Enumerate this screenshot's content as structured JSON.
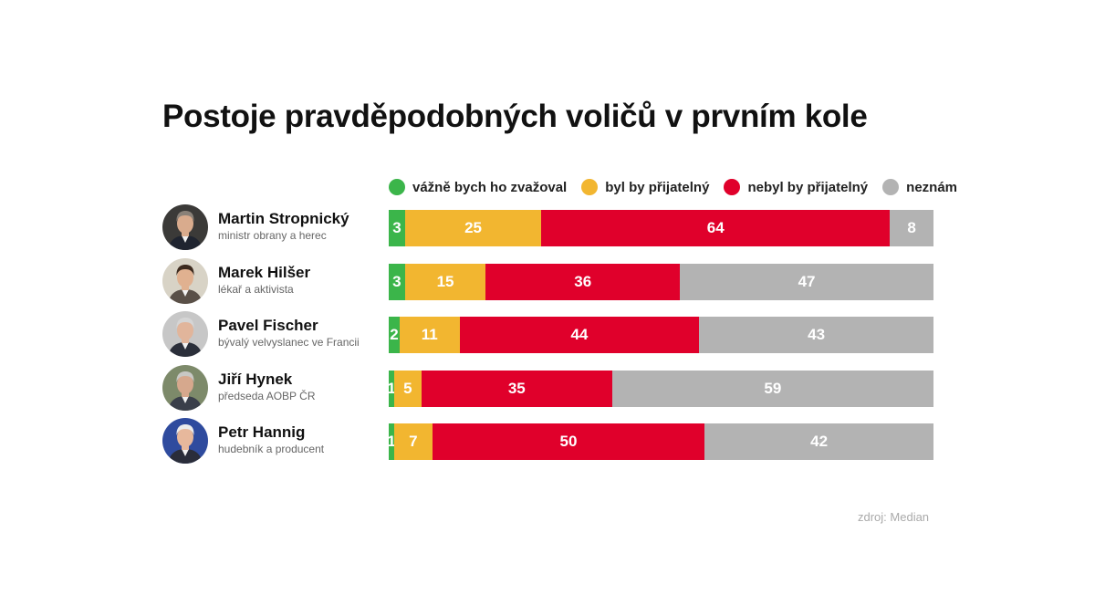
{
  "title": "Postoje pravděpodobných voličů v prvním kole",
  "source": "zdroj: Median",
  "chart_data": {
    "type": "bar",
    "orientation": "horizontal",
    "stacked": true,
    "title": "Postoje pravděpodobných voličů v prvním kole",
    "legend_position": "top",
    "grid": false,
    "xlim": [
      0,
      100
    ],
    "categories": [
      "Martin Stropnický",
      "Marek Hilšer",
      "Pavel Fischer",
      "Jiří Hynek",
      "Petr Hannig"
    ],
    "subtitles": [
      "ministr obrany a herec",
      "lékař a aktivista",
      "bývalý velvyslanec ve Francii",
      "předseda AOBP ČR",
      "hudebník a producent"
    ],
    "series": [
      {
        "name": "vážně bych ho zvažoval",
        "color": "#3bb54a",
        "values": [
          3,
          3,
          2,
          1,
          1
        ]
      },
      {
        "name": "byl by přijatelný",
        "color": "#f2b630",
        "values": [
          25,
          15,
          11,
          5,
          7
        ]
      },
      {
        "name": "nebyl by přijatelný",
        "color": "#e0002b",
        "values": [
          64,
          36,
          44,
          35,
          50
        ]
      },
      {
        "name": "neznám",
        "color": "#b3b3b3",
        "values": [
          8,
          47,
          43,
          59,
          42
        ]
      }
    ]
  },
  "avatars": [
    {
      "icon": "person-portrait-icon",
      "bg": "#3b3a38",
      "hair": "#8a8178",
      "skin": "#d9ab8d",
      "suit": "#1f2430"
    },
    {
      "icon": "person-portrait-icon",
      "bg": "#d8d3c6",
      "hair": "#3c2a1e",
      "skin": "#e0b190",
      "suit": "#5a5048"
    },
    {
      "icon": "person-portrait-icon",
      "bg": "#c7c7c7",
      "hair": "#d5d5d5",
      "skin": "#e1b59b",
      "suit": "#2b2f3a"
    },
    {
      "icon": "person-portrait-icon",
      "bg": "#7d8a6a",
      "hair": "#c8c8c4",
      "skin": "#d6a88d",
      "suit": "#3a3f4a"
    },
    {
      "icon": "person-portrait-icon",
      "bg": "#2f4b9e",
      "hair": "#ececec",
      "skin": "#e7b89c",
      "suit": "#2a2d3a"
    }
  ]
}
